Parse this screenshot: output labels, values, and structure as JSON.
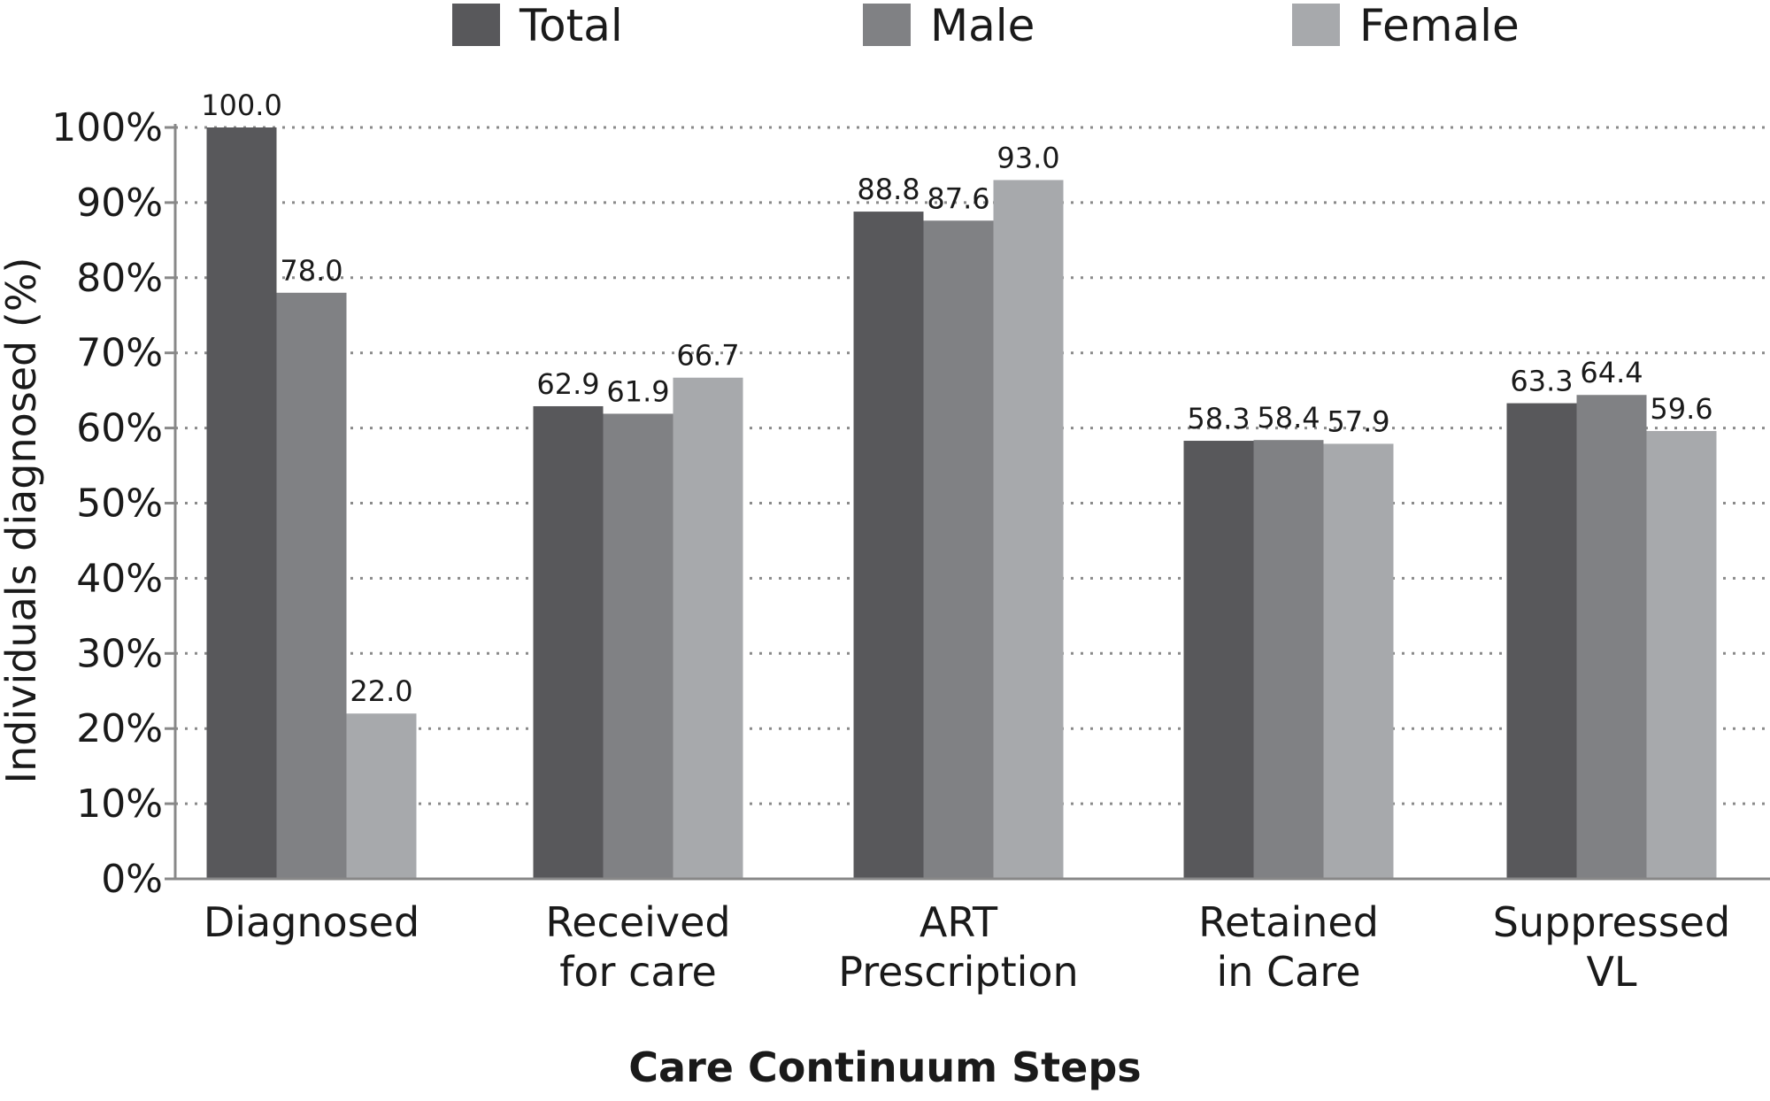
{
  "chart_data": {
    "type": "bar",
    "title": "",
    "xlabel": "Care Continuum Steps",
    "ylabel": "Individuals diagnosed (%)",
    "ylim": [
      0,
      100
    ],
    "y_ticks": [
      0,
      10,
      20,
      30,
      40,
      50,
      60,
      70,
      80,
      90,
      100
    ],
    "y_tick_suffix": "%",
    "grid": "horizontal-dotted",
    "legend_position": "top",
    "categories": [
      [
        "Diagnosed"
      ],
      [
        "Received",
        "for care"
      ],
      [
        "ART",
        "Prescription"
      ],
      [
        "Retained",
        "in Care"
      ],
      [
        "Suppressed",
        "VL"
      ]
    ],
    "series": [
      {
        "name": "Total",
        "color": "#58585b",
        "values": [
          100.0,
          62.9,
          88.8,
          58.3,
          63.3
        ]
      },
      {
        "name": "Male",
        "color": "#808184",
        "values": [
          78.0,
          61.9,
          87.6,
          58.4,
          64.4
        ]
      },
      {
        "name": "Female",
        "color": "#a7a9ac",
        "values": [
          22.0,
          66.7,
          93.0,
          57.9,
          59.6
        ]
      }
    ]
  }
}
